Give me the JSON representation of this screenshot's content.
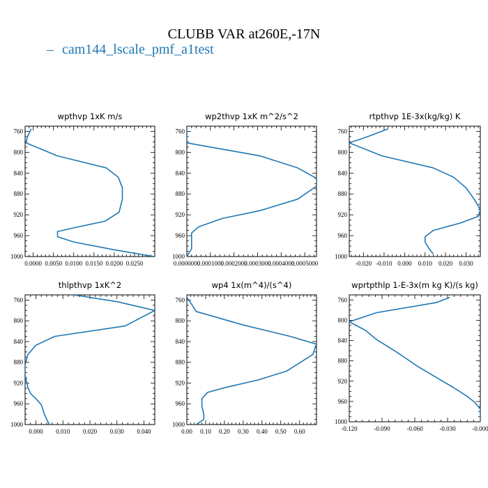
{
  "figure": {
    "title": "CLUBB VAR at260E,-17N",
    "legend_label": "cam144_lscale_pmf_a1test",
    "line_color": "#1f77b4"
  },
  "chart_data": [
    {
      "type": "line",
      "title": "wpthvp   1xK m/s",
      "xlim": [
        -0.002,
        0.03
      ],
      "ylim": [
        1000,
        750
      ],
      "xticks": [
        0.0,
        0.005,
        0.01,
        0.015,
        0.02,
        0.025
      ],
      "xtick_labels": [
        "0.0000",
        "0.0050",
        "0.0100",
        "0.0150",
        "0.0200",
        "0.0250"
      ],
      "yticks": [
        760,
        800,
        840,
        880,
        920,
        960,
        1000
      ],
      "ytick_labels": [
        "760",
        "800",
        "840",
        "880",
        "920",
        "960",
        "1000"
      ],
      "series": [
        {
          "x": [
            -0.0005,
            -0.0014,
            -0.0018,
            0.006,
            0.018,
            0.021,
            0.022,
            0.022,
            0.0212,
            0.0178,
            0.01,
            0.006,
            0.006,
            0.01,
            0.02,
            0.0298
          ],
          "y": [
            755,
            770,
            782,
            807,
            830,
            848,
            868,
            890,
            915,
            932,
            945,
            952,
            962,
            972,
            987,
            1000
          ]
        }
      ]
    },
    {
      "type": "line",
      "title": "wp2thvp   1xK m^2/s^2",
      "xlim": [
        0.0,
        0.00055
      ],
      "ylim": [
        1000,
        750
      ],
      "xticks": [
        0.0,
        0.0001,
        0.0002,
        0.0003,
        0.0004,
        0.0005
      ],
      "xtick_labels": [
        "0.0000000",
        "0.0001000",
        "0.0002000",
        "0.0003000",
        "0.0004000",
        "0.0005000"
      ],
      "yticks": [
        760,
        800,
        840,
        880,
        920,
        960,
        1000
      ],
      "ytick_labels": [
        "760",
        "800",
        "840",
        "880",
        "920",
        "960",
        "1000"
      ],
      "series": [
        {
          "x": [
            0.0,
            0.0,
            0.0,
            0.00031,
            0.00047,
            0.00055,
            0.00055,
            0.00047,
            0.00031,
            0.00015,
            5e-05,
            2e-05,
            2e-05,
            2e-05,
            0.0
          ],
          "y": [
            755,
            770,
            782,
            807,
            830,
            850,
            865,
            890,
            912,
            927,
            943,
            955,
            970,
            985,
            1000
          ]
        }
      ]
    },
    {
      "type": "line",
      "title": "rtpthvp   1E-3x(kg/kg) K",
      "xlim": [
        -0.027,
        0.037
      ],
      "ylim": [
        1000,
        750
      ],
      "xticks": [
        -0.02,
        -0.01,
        0.0,
        0.01,
        0.02,
        0.03
      ],
      "xtick_labels": [
        "-0.020",
        "-0.010",
        "0.000",
        "0.010",
        "0.020",
        "0.030"
      ],
      "yticks": [
        760,
        800,
        840,
        880,
        920,
        960,
        1000
      ],
      "ytick_labels": [
        "760",
        "800",
        "840",
        "880",
        "920",
        "960",
        "1000"
      ],
      "series": [
        {
          "x": [
            -0.008,
            -0.018,
            -0.027,
            -0.011,
            0.014,
            0.024,
            0.03,
            0.034,
            0.037,
            0.036,
            0.027,
            0.014,
            0.01,
            0.01,
            0.012,
            0.014
          ],
          "y": [
            755,
            770,
            782,
            807,
            830,
            848,
            868,
            890,
            910,
            923,
            936,
            950,
            962,
            972,
            985,
            995
          ]
        }
      ]
    },
    {
      "type": "line",
      "title": "thlpthvp   1xK^2",
      "xlim": [
        -0.004,
        0.044
      ],
      "ylim": [
        1000,
        750
      ],
      "xticks": [
        0.0,
        0.01,
        0.02,
        0.03,
        0.04
      ],
      "xtick_labels": [
        "0.000",
        "0.010",
        "0.020",
        "0.030",
        "0.040"
      ],
      "yticks": [
        760,
        800,
        840,
        880,
        920,
        960,
        1000
      ],
      "ytick_labels": [
        "760",
        "800",
        "840",
        "880",
        "920",
        "960",
        "1000"
      ],
      "series": [
        {
          "x": [
            0.014,
            0.03,
            0.044,
            0.033,
            0.007,
            0.0,
            -0.003,
            -0.004,
            -0.004,
            -0.003,
            -0.002,
            0.0,
            0.002,
            0.003,
            0.004,
            0.005
          ],
          "y": [
            750,
            763,
            780,
            810,
            830,
            847,
            865,
            885,
            905,
            928,
            940,
            950,
            962,
            978,
            990,
            1000
          ]
        }
      ]
    },
    {
      "type": "line",
      "title": "wp4   1x(m^4)/(s^4)",
      "xlim": [
        0.0,
        0.69
      ],
      "ylim": [
        1000,
        750
      ],
      "xticks": [
        0.0,
        0.1,
        0.2,
        0.3,
        0.4,
        0.5,
        0.6
      ],
      "xtick_labels": [
        "0.00",
        "0.10",
        "0.20",
        "0.30",
        "0.40",
        "0.50",
        "0.60"
      ],
      "yticks": [
        760,
        800,
        840,
        880,
        920,
        960,
        1000
      ],
      "ytick_labels": [
        "760",
        "800",
        "840",
        "880",
        "920",
        "960",
        "1000"
      ],
      "series": [
        {
          "x": [
            0.0,
            0.02,
            0.05,
            0.3,
            0.55,
            0.69,
            0.67,
            0.53,
            0.38,
            0.2,
            0.11,
            0.08,
            0.08,
            0.09,
            0.09,
            0.05
          ],
          "y": [
            755,
            765,
            782,
            808,
            830,
            845,
            865,
            897,
            914,
            929,
            938,
            950,
            965,
            980,
            990,
            1000
          ]
        }
      ]
    },
    {
      "type": "line",
      "title": "wprtpthlp   1-E-3x(m kg K)/(s kg)",
      "xlim": [
        -0.12,
        0.0
      ],
      "ylim": [
        1000,
        750
      ],
      "xticks": [
        -0.12,
        -0.09,
        -0.06,
        -0.03,
        0.0
      ],
      "xtick_labels": [
        "-0.120",
        "-0.090",
        "-0.060",
        "-0.030",
        "-0.000"
      ],
      "yticks": [
        760,
        800,
        840,
        880,
        920,
        960,
        1000
      ],
      "ytick_labels": [
        "760",
        "800",
        "840",
        "880",
        "920",
        "960",
        "1000"
      ],
      "series": [
        {
          "x": [
            -0.028,
            -0.04,
            -0.095,
            -0.12,
            -0.105,
            -0.095,
            -0.075,
            -0.058,
            -0.04,
            -0.025,
            -0.012,
            -0.005,
            0.0,
            0.0
          ],
          "y": [
            755,
            765,
            785,
            803,
            820,
            838,
            865,
            890,
            913,
            932,
            950,
            962,
            975,
            1000
          ]
        }
      ]
    }
  ]
}
